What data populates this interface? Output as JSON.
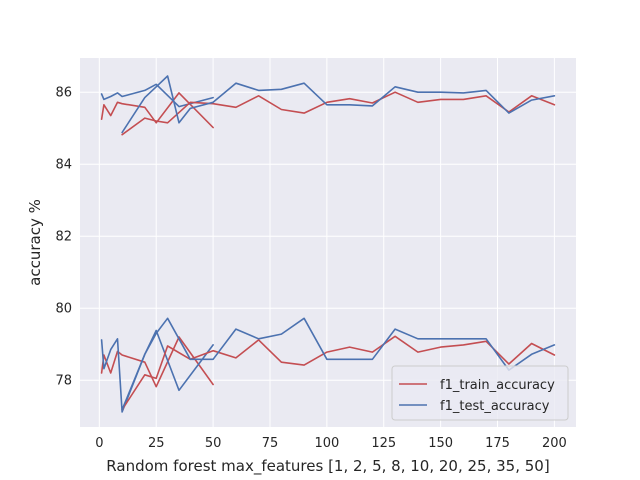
{
  "chart_data": {
    "type": "line",
    "xlabel": "Random forest max_features [1, 2, 5, 8, 10, 20, 25, 35, 50]",
    "ylabel": "accuracy %",
    "xlim": [
      -8.5,
      209.5
    ],
    "ylim": [
      76.7,
      86.95
    ],
    "xticks": [
      0,
      25,
      50,
      75,
      100,
      125,
      150,
      175,
      200
    ],
    "yticks": [
      78,
      80,
      82,
      84,
      86
    ],
    "grid": true,
    "legend_position": "lower-right",
    "colors": {
      "train": "#c44e52",
      "test": "#4c72b0",
      "background": "#eaeaf2",
      "grid": "#ffffff"
    },
    "legend": [
      "f1_train_accuracy",
      "f1_test_accuracy"
    ],
    "series": [
      {
        "name": "f1_train_accuracy",
        "color": "#c44e52",
        "x": [
          1,
          2,
          5,
          8,
          10,
          20,
          25,
          35,
          50
        ],
        "y": [
          85.25,
          85.65,
          85.35,
          85.72,
          85.68,
          85.58,
          85.15,
          85.98,
          85.02
        ]
      },
      {
        "name": "f1_test_accuracy",
        "color": "#4c72b0",
        "x": [
          1,
          2,
          5,
          8,
          10,
          20,
          25,
          35,
          50
        ],
        "y": [
          85.95,
          85.8,
          85.88,
          85.98,
          85.88,
          86.05,
          86.22,
          85.6,
          85.85
        ]
      },
      {
        "name": "f1_train_accuracy",
        "color": "#c44e52",
        "x": [
          10,
          20,
          25,
          30,
          40,
          50,
          60,
          70,
          80,
          90,
          100,
          110,
          120,
          130,
          140,
          150,
          160,
          170,
          180,
          190,
          200
        ],
        "y": [
          84.82,
          85.28,
          85.2,
          85.15,
          85.72,
          85.68,
          85.58,
          85.9,
          85.52,
          85.42,
          85.72,
          85.82,
          85.7,
          86.0,
          85.72,
          85.8,
          85.8,
          85.9,
          85.45,
          85.9,
          85.65
        ]
      },
      {
        "name": "f1_test_accuracy",
        "color": "#4c72b0",
        "x": [
          10,
          20,
          25,
          30,
          35,
          40,
          50,
          60,
          70,
          80,
          90,
          100,
          110,
          120,
          130,
          140,
          150,
          160,
          170,
          180,
          190,
          200
        ],
        "y": [
          84.88,
          85.85,
          86.15,
          86.45,
          85.15,
          85.55,
          85.72,
          86.25,
          86.05,
          86.08,
          86.25,
          85.65,
          85.65,
          85.62,
          86.15,
          86.0,
          86.0,
          85.98,
          86.05,
          85.42,
          85.78,
          85.9
        ]
      },
      {
        "name": "f1_train_accuracy",
        "color": "#c44e52",
        "x": [
          1,
          2,
          5,
          8,
          10,
          20,
          25,
          35,
          50
        ],
        "y": [
          78.2,
          78.7,
          78.2,
          78.8,
          78.7,
          78.5,
          77.82,
          79.2,
          77.88
        ]
      },
      {
        "name": "f1_test_accuracy",
        "color": "#4c72b0",
        "x": [
          1,
          2,
          5,
          8,
          10,
          20,
          25,
          35,
          50
        ],
        "y": [
          79.12,
          78.32,
          78.85,
          79.15,
          77.12,
          78.72,
          79.38,
          77.72,
          78.98
        ]
      },
      {
        "name": "f1_train_accuracy",
        "color": "#c44e52",
        "x": [
          10,
          20,
          25,
          30,
          40,
          50,
          60,
          70,
          80,
          90,
          100,
          110,
          120,
          130,
          140,
          150,
          160,
          170,
          180,
          190,
          200
        ],
        "y": [
          77.18,
          78.15,
          78.05,
          78.95,
          78.58,
          78.82,
          78.62,
          79.12,
          78.5,
          78.42,
          78.78,
          78.92,
          78.78,
          79.22,
          78.78,
          78.92,
          78.98,
          79.08,
          78.45,
          79.02,
          78.7
        ]
      },
      {
        "name": "f1_test_accuracy",
        "color": "#4c72b0",
        "x": [
          10,
          20,
          25,
          30,
          40,
          50,
          60,
          70,
          80,
          90,
          100,
          110,
          120,
          130,
          140,
          150,
          160,
          170,
          180,
          190,
          200
        ],
        "y": [
          77.18,
          78.72,
          79.3,
          79.72,
          78.58,
          78.58,
          79.42,
          79.15,
          79.28,
          79.72,
          78.58,
          78.58,
          78.58,
          79.42,
          79.15,
          79.15,
          79.15,
          79.15,
          78.28,
          78.72,
          78.98
        ]
      }
    ]
  }
}
